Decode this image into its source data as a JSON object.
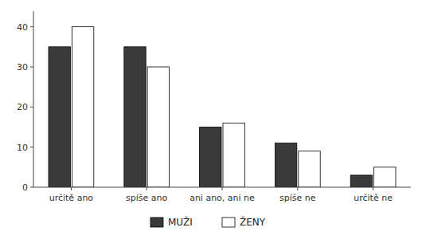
{
  "chart_data": {
    "type": "bar",
    "categories": [
      "určitě ano",
      "spíše ano",
      "ani ano, ani ne",
      "spíše ne",
      "určitě ne"
    ],
    "series": [
      {
        "name": "MUŽI",
        "color": "#3a3a3a",
        "values": [
          35,
          35,
          15,
          11,
          3
        ]
      },
      {
        "name": "ŽENY",
        "color": "#ffffff",
        "values": [
          40,
          30,
          16,
          9,
          5
        ]
      }
    ],
    "ylim": [
      0,
      43.9
    ],
    "yticks": [
      0,
      10,
      20,
      30,
      40
    ],
    "grid": false,
    "legend": "bottom"
  }
}
